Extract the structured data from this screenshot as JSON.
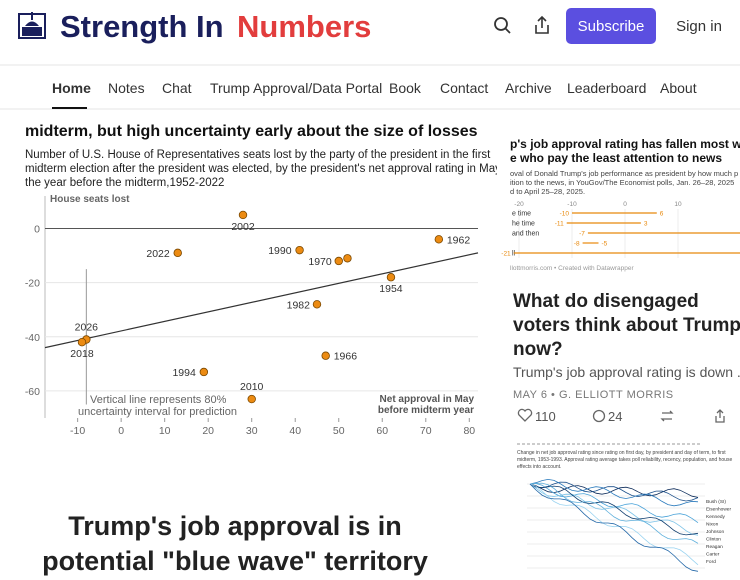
{
  "header": {
    "title_part1": "Strength In",
    "title_part2": "Numbers",
    "subscribe": "Subscribe",
    "sign_in": "Sign in"
  },
  "nav": [
    "Home",
    "Notes",
    "Chat",
    "Trump Approval/Data Portal",
    "Book",
    "Contact",
    "Archive",
    "Leaderboard",
    "About"
  ],
  "post": {
    "chart": {
      "type": "scatter",
      "title": "midterm, but high uncertainty early about the size of losses",
      "subtitle": [
        "Number of U.S. House of Representatives seats lost by the party of the president in the first",
        "midterm election after the president was elected, by the president's net approval rating in May of",
        "the year before the midterm,1952-2022"
      ],
      "y_label": "House seats lost",
      "x_label": [
        "Net approval in May",
        "before midterm year"
      ],
      "annotation": [
        "Vertical line represents 80%",
        "uncertainty interval for prediction"
      ],
      "xlim": [
        -17.5,
        82
      ],
      "ylim": [
        12,
        -70
      ],
      "xticks": [
        -10,
        0,
        10,
        20,
        30,
        40,
        50,
        60,
        70,
        80
      ],
      "yticks": [
        0,
        -20,
        -40,
        -60
      ],
      "points": [
        {
          "label": "2002",
          "x": 28,
          "y": 5
        },
        {
          "label": "2022",
          "x": 13,
          "y": -9
        },
        {
          "label": "1990",
          "x": 41,
          "y": -8
        },
        {
          "label": "1970",
          "x": 50,
          "y": -12
        },
        {
          "label": null,
          "x": 52,
          "y": -11
        },
        {
          "label": "1962",
          "x": 73,
          "y": -4
        },
        {
          "label": "1954",
          "x": 62,
          "y": -18
        },
        {
          "label": "1982",
          "x": 45,
          "y": -28
        },
        {
          "label": "2026",
          "x": -8,
          "y": -41
        },
        {
          "label": "2018",
          "x": -9,
          "y": -42
        },
        {
          "label": "1966",
          "x": 47,
          "y": -47
        },
        {
          "label": "1994",
          "x": 19,
          "y": -53
        },
        {
          "label": "2010",
          "x": 30,
          "y": -63
        }
      ],
      "trend": {
        "x": [
          -17.5,
          82
        ],
        "y": [
          -44,
          -9
        ]
      },
      "interval": {
        "x": -8,
        "low": -65,
        "high": -15
      }
    },
    "headline": [
      "Trump's job approval is in",
      "potential \"blue wave\" territory"
    ]
  },
  "sidebar": {
    "card1": {
      "thumb_title": [
        "p's job approval rating has fallen most with",
        "e who pay the least attention to news"
      ],
      "thumb_sub": [
        "oval of Donald Trump's job performance as president by how much p",
        "ition to the news, in YouGov/The Economist polls, Jan. 26–28, 2025",
        "d to April 25–28, 2025."
      ],
      "thumb_ticks": [
        "-20",
        "-10",
        "0",
        "10"
      ],
      "rows": [
        {
          "label": "e time",
          "start": "-10",
          "end": "6"
        },
        {
          "label": "he time",
          "start": "-11",
          "end": "3"
        },
        {
          "label": "and then",
          "start": "-7",
          "end": null
        },
        {
          "label": "",
          "start": "-8",
          "end": "-5"
        },
        {
          "label": "ll",
          "start": "-21",
          "end": null
        }
      ],
      "thumb_credit": "llottmorris.com • Created with Datawrapper",
      "title": [
        "What do disengaged",
        "voters think about Trump",
        "now?"
      ],
      "snippet": "Trump's job approval rating is down ...",
      "meta": "MAY 6 • G. ELLIOTT MORRIS",
      "likes": "110",
      "comments": "24"
    },
    "card2": {
      "thumb_sub": [
        "Change in net job approval rating since rating on first day, by president and day of term, to first",
        "midterm, 1953-1993. Approval rating average takes poll reliability, recency, population, and house",
        "effects into account."
      ],
      "legend": [
        "Bush (SI)",
        "Eisenhower",
        "Kennedy",
        "Nixon",
        "Johnson",
        "Clinton",
        "Reagan",
        "Carter",
        "Ford"
      ]
    }
  }
}
